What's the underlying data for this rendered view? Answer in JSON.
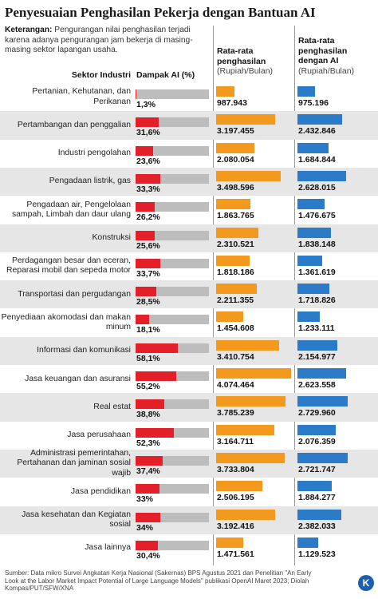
{
  "title": "Penyesuaian Penghasilan Pekerja dengan Bantuan AI",
  "note": {
    "label": "Keterangan:",
    "text": "Pengurangan nilai penghasilan terjadi karena adanya pengurangan jam bekerja di masing-masing sektor lapangan usaha."
  },
  "columns": {
    "sector": "Sektor Industri",
    "ai_impact": "Dampak AI (%)",
    "avg_income": "Rata-rata penghasilan",
    "avg_income_unit": "(Rupiah/Bulan)",
    "avg_income_ai": "Rata-rata penghasilan dengan AI",
    "avg_income_ai_unit": "(Rupiah/Bulan)"
  },
  "colors": {
    "ai_impact": "#e3202a",
    "ai_track": "#bdbdbd",
    "avg_income": "#f39a1e",
    "avg_income_ai": "#2b7bc8",
    "row_shade": "#e6e6e6"
  },
  "chart_data": {
    "type": "bar",
    "categories": [
      "Pertanian, Kehutanan, dan Perikanan",
      "Pertambangan dan penggalian",
      "Industri pengolahan",
      "Pengadaan listrik, gas",
      "Pengadaan air, Pengelolaan sampah, Limbah dan daur ulang",
      "Konstruksi",
      "Perdagangan besar dan eceran, Reparasi mobil dan sepeda motor",
      "Transportasi dan pergudangan",
      "Penyediaan akomodasi dan makan minum",
      "Informasi dan komunikasi",
      "Jasa keuangan dan asuransi",
      "Real estat",
      "Jasa perusahaan",
      "Administrasi pemerintahan, Pertahanan dan jaminan sosial wajib",
      "Jasa pendidikan",
      "Jasa kesehatan dan Kegiatan sosial",
      "Jasa lainnya"
    ],
    "series": [
      {
        "name": "Dampak AI (%)",
        "values": [
          1.3,
          31.6,
          23.6,
          33.3,
          26.2,
          25.6,
          33.7,
          28.5,
          18.1,
          58.1,
          55.2,
          38.8,
          52.3,
          37.4,
          33,
          34,
          30.4
        ],
        "labels": [
          "1,3%",
          "31,6%",
          "23,6%",
          "33,3%",
          "26,2%",
          "25,6%",
          "33,7%",
          "28,5%",
          "18,1%",
          "58,1%",
          "55,2%",
          "38,8%",
          "52,3%",
          "37,4%",
          "33%",
          "34%",
          "30,4%"
        ]
      },
      {
        "name": "Rata-rata penghasilan (Rupiah/Bulan)",
        "values": [
          987943,
          3197455,
          2080054,
          3498596,
          1863765,
          2310521,
          1818186,
          2211355,
          1454608,
          3410754,
          4074464,
          3785239,
          3164711,
          3733804,
          2506195,
          3192416,
          1471561
        ],
        "labels": [
          "987.943",
          "3.197.455",
          "2.080.054",
          "3.498.596",
          "1.863.765",
          "2.310.521",
          "1.818.186",
          "2.211.355",
          "1.454.608",
          "3.410.754",
          "4.074.464",
          "3.785.239",
          "3.164.711",
          "3.733.804",
          "2.506.195",
          "3.192.416",
          "1.471.561"
        ]
      },
      {
        "name": "Rata-rata penghasilan dengan AI (Rupiah/Bulan)",
        "values": [
          975196,
          2432846,
          1684844,
          2628015,
          1476675,
          1838148,
          1361619,
          1718826,
          1233111,
          2154977,
          2623558,
          2729960,
          2076359,
          2721747,
          1884277,
          2382033,
          1129523
        ],
        "labels": [
          "975.196",
          "2.432.846",
          "1.684.844",
          "2.628.015",
          "1.476.675",
          "1.838.148",
          "1.361.619",
          "1.718.826",
          "1.233.111",
          "2.154.977",
          "2.623.558",
          "2.729.960",
          "2.076.359",
          "2.721.747",
          "1.884.277",
          "2.382.033",
          "1.129.523"
        ]
      }
    ]
  },
  "source": "Sumber: Data mikro Survei Angkatan Kerja Nasional (Sakernas) BPS Agustus 2021 dan Penelitian \"An Early Look at the Labor Market Impact Potential of Large Language Models\" publikasi OpenAI Maret 2023; Diolah Kompas/PUT/SFW/XNA",
  "logo_text": "K"
}
